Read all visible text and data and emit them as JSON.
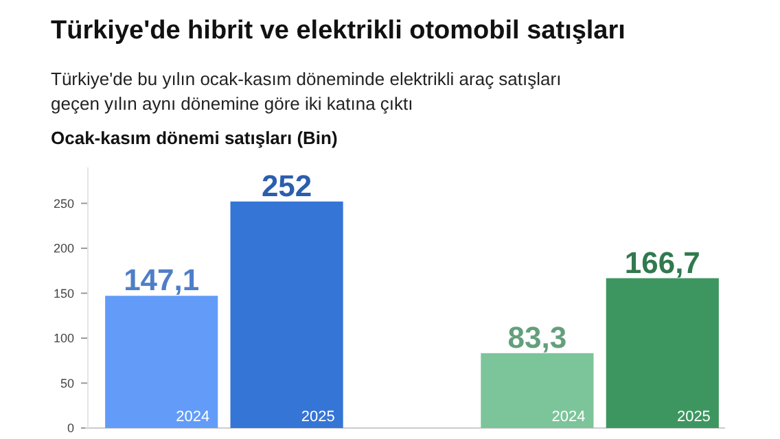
{
  "chart_data": {
    "type": "bar",
    "title": "Türkiye'de hibrit ve elektrikli otomobil satışları",
    "subtitle": "Türkiye'de bu yılın ocak-kasım döneminde elektrikli araç satışları\ngeçen yılın aynı dönemine göre iki katına çıktı",
    "ylabel": "Ocak-kasım dönemi satışları (Bin)",
    "categories": [
      "2024",
      "2025",
      null,
      "2024",
      "2025"
    ],
    "values": [
      147.1,
      252,
      null,
      83.3,
      166.7
    ],
    "value_labels": [
      "147,1",
      "252",
      null,
      "83,3",
      "166,7"
    ],
    "colors": [
      "#629cf8",
      "#3575d6",
      null,
      "#7cc59a",
      "#3d9660"
    ],
    "ylim": [
      0,
      290
    ],
    "yticks": [
      0,
      50,
      100,
      150,
      200,
      250
    ],
    "grid": false
  }
}
